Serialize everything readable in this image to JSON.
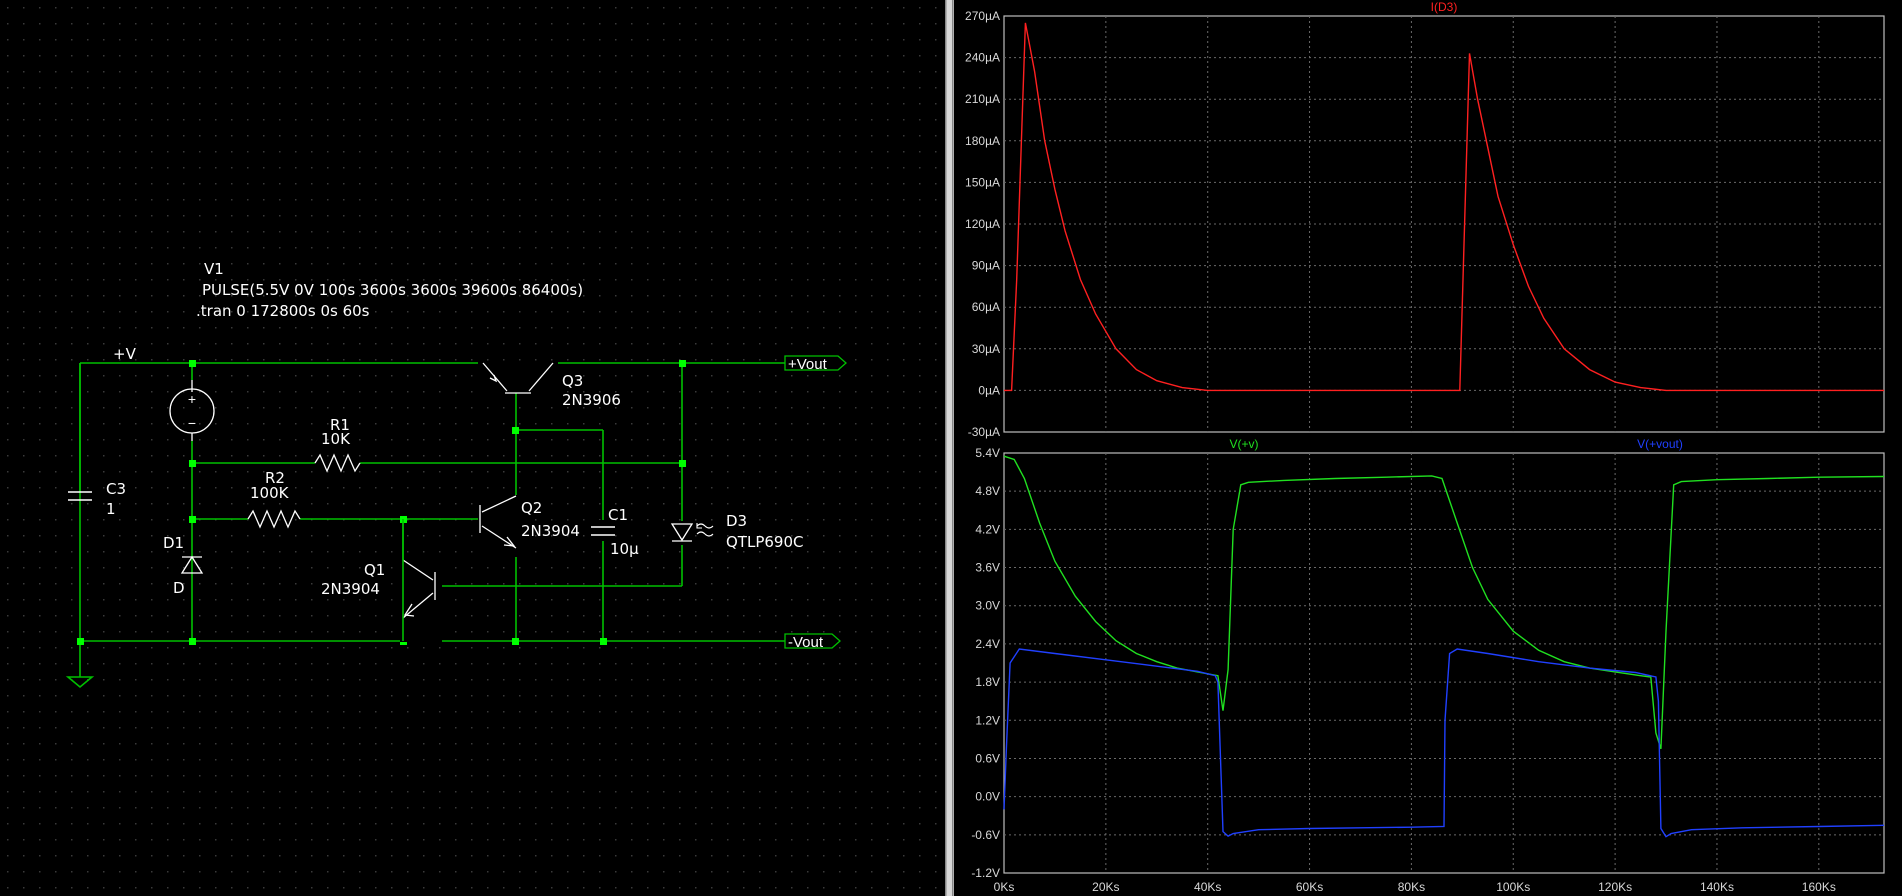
{
  "schematic": {
    "source": {
      "name": "V1",
      "params": "PULSE(5.5V 0V 100s 3600s 3600s 39600s 86400s)"
    },
    "directive": ".tran 0 172800s 0s 60s",
    "nets": {
      "vplus": "+V",
      "vout_pos": "+Vout",
      "vout_neg": "-Vout"
    },
    "components": {
      "r1": {
        "name": "R1",
        "value": "10K"
      },
      "r2": {
        "name": "R2",
        "value": "100K"
      },
      "c3": {
        "name": "C3",
        "value": "1"
      },
      "d1": {
        "name": "D1",
        "value": "D"
      },
      "q1": {
        "name": "Q1",
        "value": "2N3904"
      },
      "q2": {
        "name": "Q2",
        "value": "2N3904"
      },
      "q3": {
        "name": "Q3",
        "value": "2N3906"
      },
      "c1": {
        "name": "C1",
        "value": "10µ"
      },
      "d3": {
        "name": "D3",
        "value": "QTLP690C"
      }
    },
    "colors": {
      "background": "#000000",
      "wire": "#00c800",
      "junction": "#00ff00",
      "text": "#ffffff",
      "grid_dot": "#3a3a3a"
    }
  },
  "chart_data": [
    {
      "type": "line",
      "title": "I(D3)",
      "xlabel": "",
      "ylabel": "",
      "grid": true,
      "xlim": [
        0,
        172800
      ],
      "ylim": [
        -30,
        270
      ],
      "x_tick_labels": [
        "0Ks",
        "20Ks",
        "40Ks",
        "60Ks",
        "80Ks",
        "100Ks",
        "120Ks",
        "140Ks",
        "160Ks"
      ],
      "y_tick_labels": [
        "-30µA",
        "0µA",
        "30µA",
        "60µA",
        "90µA",
        "120µA",
        "150µA",
        "180µA",
        "210µA",
        "240µA",
        "270µA"
      ],
      "series": [
        {
          "name": "I(D3)",
          "color": "#ff2020",
          "x": [
            0,
            1500,
            2500,
            4200,
            6000,
            8000,
            10000,
            12000,
            15000,
            18000,
            22000,
            26000,
            30000,
            35000,
            40000,
            50000,
            60000,
            70000,
            80000,
            88000,
            89500,
            91400,
            93000,
            95000,
            97000,
            100000,
            103000,
            106000,
            110000,
            115000,
            120000,
            125000,
            130000,
            140000,
            150000,
            160000,
            172800
          ],
          "y": [
            0,
            0,
            80,
            265,
            230,
            180,
            145,
            115,
            80,
            55,
            30,
            15,
            7,
            2,
            0,
            0,
            0,
            0,
            0,
            0,
            0,
            243,
            210,
            175,
            140,
            105,
            75,
            52,
            30,
            15,
            6,
            2,
            0,
            0,
            0,
            0,
            0
          ]
        }
      ]
    },
    {
      "type": "line",
      "title": "V(+v) / V(+vout)",
      "xlabel": "",
      "ylabel": "",
      "grid": true,
      "xlim": [
        0,
        172800
      ],
      "ylim": [
        -1.2,
        5.4
      ],
      "x_tick_labels": [
        "0Ks",
        "20Ks",
        "40Ks",
        "60Ks",
        "80Ks",
        "100Ks",
        "120Ks",
        "140Ks",
        "160Ks"
      ],
      "y_tick_labels": [
        "-1.2V",
        "-0.6V",
        "0.0V",
        "0.6V",
        "1.2V",
        "1.8V",
        "2.4V",
        "3.0V",
        "3.6V",
        "4.2V",
        "4.8V",
        "5.4V"
      ],
      "series": [
        {
          "name": "V(+v)",
          "color": "#20e020",
          "x": [
            0,
            2000,
            4000,
            7000,
            10000,
            14000,
            18000,
            22000,
            26000,
            30000,
            34000,
            38000,
            42000,
            43000,
            44000,
            45000,
            46500,
            48000,
            55000,
            65000,
            75000,
            84000,
            86000,
            89000,
            92000,
            95000,
            100000,
            105000,
            110000,
            115000,
            120000,
            125000,
            127000,
            128000,
            129000,
            130000,
            131500,
            133000,
            140000,
            150000,
            160000,
            172800
          ],
          "y": [
            5.35,
            5.3,
            5.0,
            4.3,
            3.7,
            3.15,
            2.75,
            2.45,
            2.25,
            2.12,
            2.02,
            1.96,
            1.9,
            1.35,
            2.0,
            4.2,
            4.9,
            4.94,
            4.97,
            5.0,
            5.02,
            5.04,
            5.0,
            4.3,
            3.6,
            3.1,
            2.6,
            2.3,
            2.12,
            2.02,
            1.96,
            1.9,
            1.88,
            1.0,
            0.75,
            2.6,
            4.9,
            4.95,
            4.98,
            5.0,
            5.02,
            5.03
          ]
        },
        {
          "name": "V(+vout)",
          "color": "#2040ff",
          "x": [
            0,
            500,
            1200,
            3000,
            10000,
            20000,
            30000,
            38000,
            41500,
            42000,
            43000,
            44000,
            45000,
            50000,
            60000,
            70000,
            80000,
            86400,
            86600,
            87500,
            89000,
            95000,
            105000,
            115000,
            124000,
            128000,
            128500,
            129000,
            130000,
            131000,
            135000,
            145000,
            160000,
            172800
          ],
          "y": [
            -0.2,
            0.8,
            2.1,
            2.32,
            2.25,
            2.15,
            2.05,
            1.97,
            1.9,
            1.8,
            -0.55,
            -0.62,
            -0.58,
            -0.52,
            -0.5,
            -0.49,
            -0.48,
            -0.47,
            1.2,
            2.25,
            2.32,
            2.25,
            2.12,
            2.02,
            1.95,
            1.88,
            1.5,
            -0.5,
            -0.63,
            -0.58,
            -0.52,
            -0.49,
            -0.47,
            -0.45
          ]
        }
      ]
    }
  ]
}
